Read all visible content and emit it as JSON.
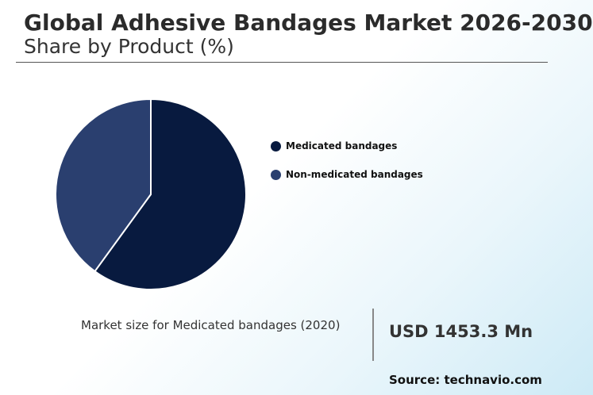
{
  "chart_data": {
    "type": "pie",
    "title": "Global Adhesive Bandages Market 2026-2030",
    "subtitle": "Share by Product (%)",
    "slices": [
      {
        "label": "Medicated bandages",
        "value": 60,
        "color": "#081a3f"
      },
      {
        "label": "Non-medicated bandages",
        "value": 40,
        "color": "#2a3f6f"
      }
    ],
    "legend_position": "right"
  },
  "market_size": {
    "label": "Market size for Medicated bandages (2020)",
    "value": "USD 1453.3 Mn"
  },
  "source": "Source: technavio.com"
}
